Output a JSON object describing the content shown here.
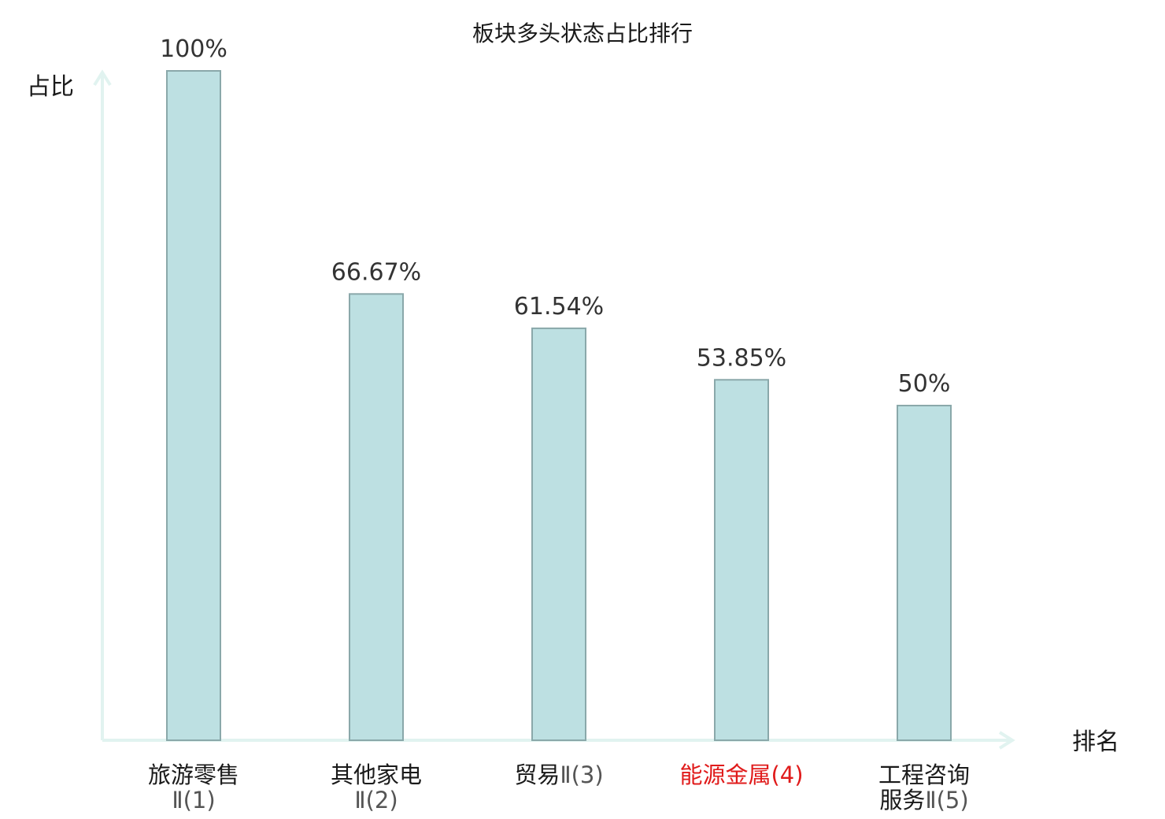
{
  "chart_data": {
    "type": "bar",
    "title": "板块多头状态占比排行",
    "ylabel": "占比",
    "xlabel": "排名",
    "ylim": [
      0,
      100
    ],
    "grid": false,
    "legend": "none",
    "categories": [
      {
        "lines": [
          {
            "text": "旅游零售",
            "sub": ""
          },
          {
            "text": "",
            "sub": "Ⅱ(1)"
          }
        ],
        "highlight": false
      },
      {
        "lines": [
          {
            "text": "其他家电",
            "sub": ""
          },
          {
            "text": "",
            "sub": "Ⅱ(2)"
          }
        ],
        "highlight": false
      },
      {
        "lines": [
          {
            "text": "贸易",
            "sub": "Ⅱ(3)"
          }
        ],
        "highlight": false
      },
      {
        "lines": [
          {
            "text": "能源金属",
            "sub": "(4)"
          }
        ],
        "highlight": true
      },
      {
        "lines": [
          {
            "text": "工程咨询",
            "sub": ""
          },
          {
            "text": "服务",
            "sub": "Ⅱ(5)"
          }
        ],
        "highlight": false
      }
    ],
    "values": [
      100,
      66.67,
      61.54,
      53.85,
      50
    ],
    "value_labels": [
      "100%",
      "66.67%",
      "61.54%",
      "53.85%",
      "50%"
    ]
  },
  "colors": {
    "bar_fill": "#bde0e2",
    "bar_stroke": "#8aa8aa",
    "axis": "#e1f3f0",
    "highlight": "#e01b1b",
    "text": "#1a1a1a"
  }
}
